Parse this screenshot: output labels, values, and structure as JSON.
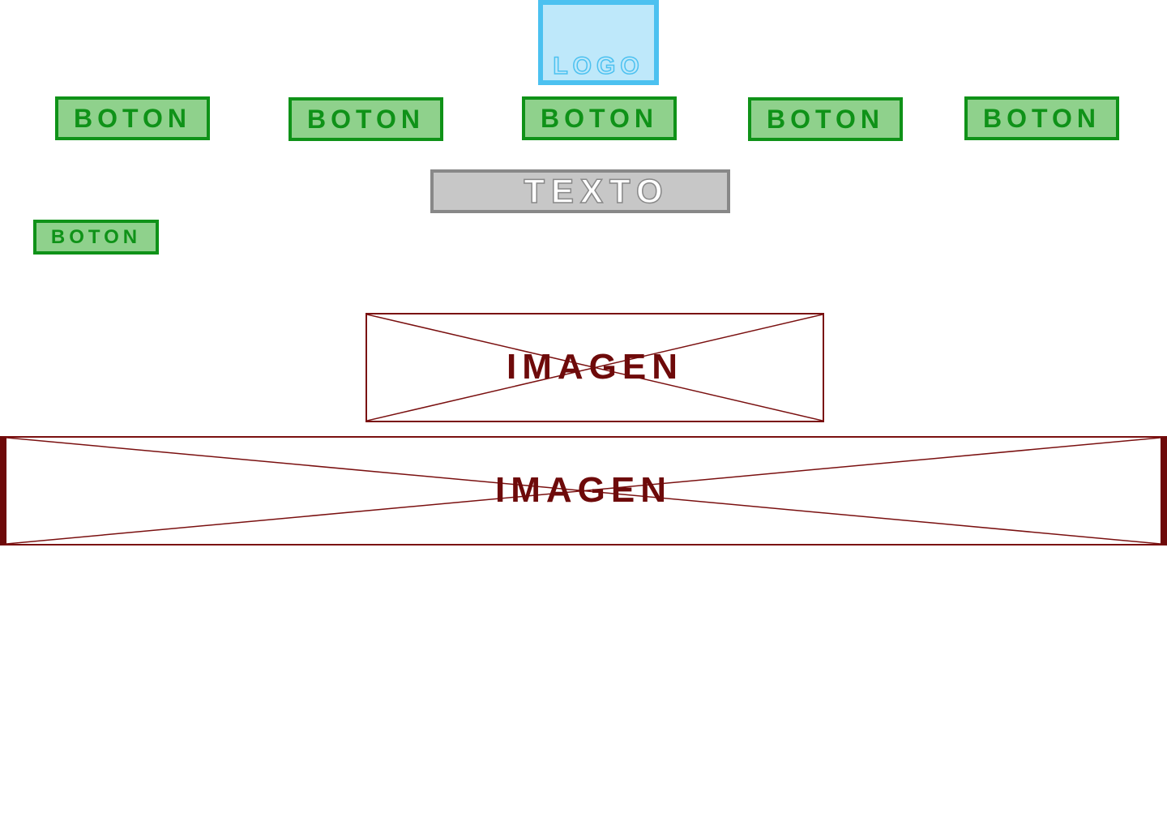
{
  "header": {
    "logo_label": "LOGO"
  },
  "nav": {
    "buttons": [
      {
        "label": "BOTON"
      },
      {
        "label": "BOTON"
      },
      {
        "label": "BOTON"
      },
      {
        "label": "BOTON"
      },
      {
        "label": "BOTON"
      }
    ]
  },
  "text_block": {
    "label": "TEXTO"
  },
  "side": {
    "button_label": "BOTON"
  },
  "images": [
    {
      "label": "IMAGEN"
    },
    {
      "label": "IMAGEN"
    }
  ],
  "colors": {
    "logo_fill": "#bee8fa",
    "logo_border": "#4cc1f0",
    "button_fill": "#8fd18c",
    "button_border": "#0f9218",
    "text_fill": "#c7c7c7",
    "text_border": "#888888",
    "image_border": "#7a1010"
  }
}
